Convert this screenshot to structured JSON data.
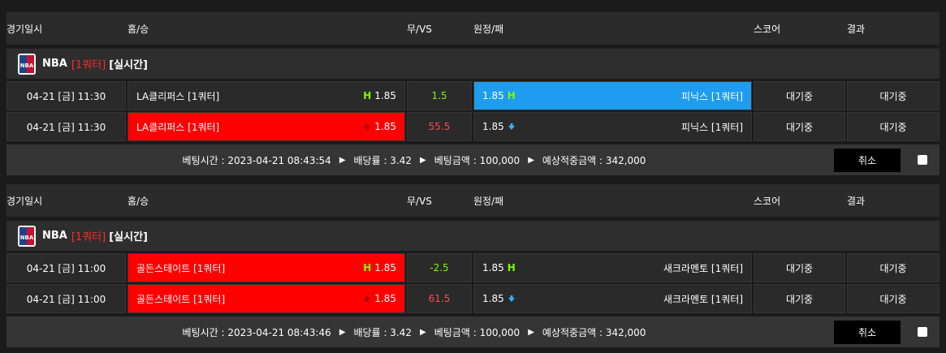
{
  "blocks": [
    {
      "columns": [
        "경기일시",
        "홈/승",
        "무/VS",
        "원정/패",
        "스코어",
        "결과"
      ],
      "league": {
        "name": "NBA",
        "period": "[1쿼터]",
        "mode": "[실시간]"
      },
      "games": [
        {
          "date": "04-21 [금] 11:30",
          "home": "LA클리퍼스 [1쿼터]",
          "home_icon": "H",
          "home_odds": "1.85",
          "line": "1.5",
          "line_color": "#7cfc00",
          "away_odds": "1.85",
          "away_icon": "H",
          "away": "피닉스 [1쿼터]",
          "score": "대기중",
          "result": "대기중",
          "pick": "away"
        },
        {
          "date": "04-21 [금] 11:30",
          "home": "LA클리퍼스 [1쿼터]",
          "home_icon": "up",
          "home_odds": "1.85",
          "line": "55.5",
          "line_color": "#ff4b4b",
          "away_odds": "1.85",
          "away_icon": "down",
          "away": "피닉스 [1쿼터]",
          "score": "대기중",
          "result": "대기중",
          "pick": "home"
        }
      ],
      "summary": {
        "time_label": "베팅시간 : 2023-04-21 08:43:54",
        "rate_label": "배당률 : 3.42",
        "amount_label": "베팅금액 : 100,000",
        "expected_label": "예상적중금액 : 342,000",
        "cancel": "취소"
      }
    },
    {
      "columns": [
        "경기일시",
        "홈/승",
        "무/VS",
        "원정/패",
        "스코어",
        "결과"
      ],
      "league": {
        "name": "NBA",
        "period": "[1쿼터]",
        "mode": "[실시간]"
      },
      "games": [
        {
          "date": "04-21 [금] 11:00",
          "home": "골든스테이트 [1쿼터]",
          "home_icon": "H",
          "home_odds": "1.85",
          "line": "-2.5",
          "line_color": "#7cfc00",
          "away_odds": "1.85",
          "away_icon": "H",
          "away": "새크라멘토 [1쿼터]",
          "score": "대기중",
          "result": "대기중",
          "pick": "home"
        },
        {
          "date": "04-21 [금] 11:00",
          "home": "골든스테이트 [1쿼터]",
          "home_icon": "up",
          "home_odds": "1.85",
          "line": "61.5",
          "line_color": "#ff4b4b",
          "away_odds": "1.85",
          "away_icon": "down",
          "away": "새크라멘토 [1쿼터]",
          "score": "대기중",
          "result": "대기중",
          "pick": "home"
        }
      ],
      "summary": {
        "time_label": "베팅시간 : 2023-04-21 08:43:46",
        "rate_label": "배당률 : 3.42",
        "amount_label": "베팅금액 : 100,000",
        "expected_label": "예상적중금액 : 342,000",
        "cancel": "취소"
      }
    }
  ]
}
